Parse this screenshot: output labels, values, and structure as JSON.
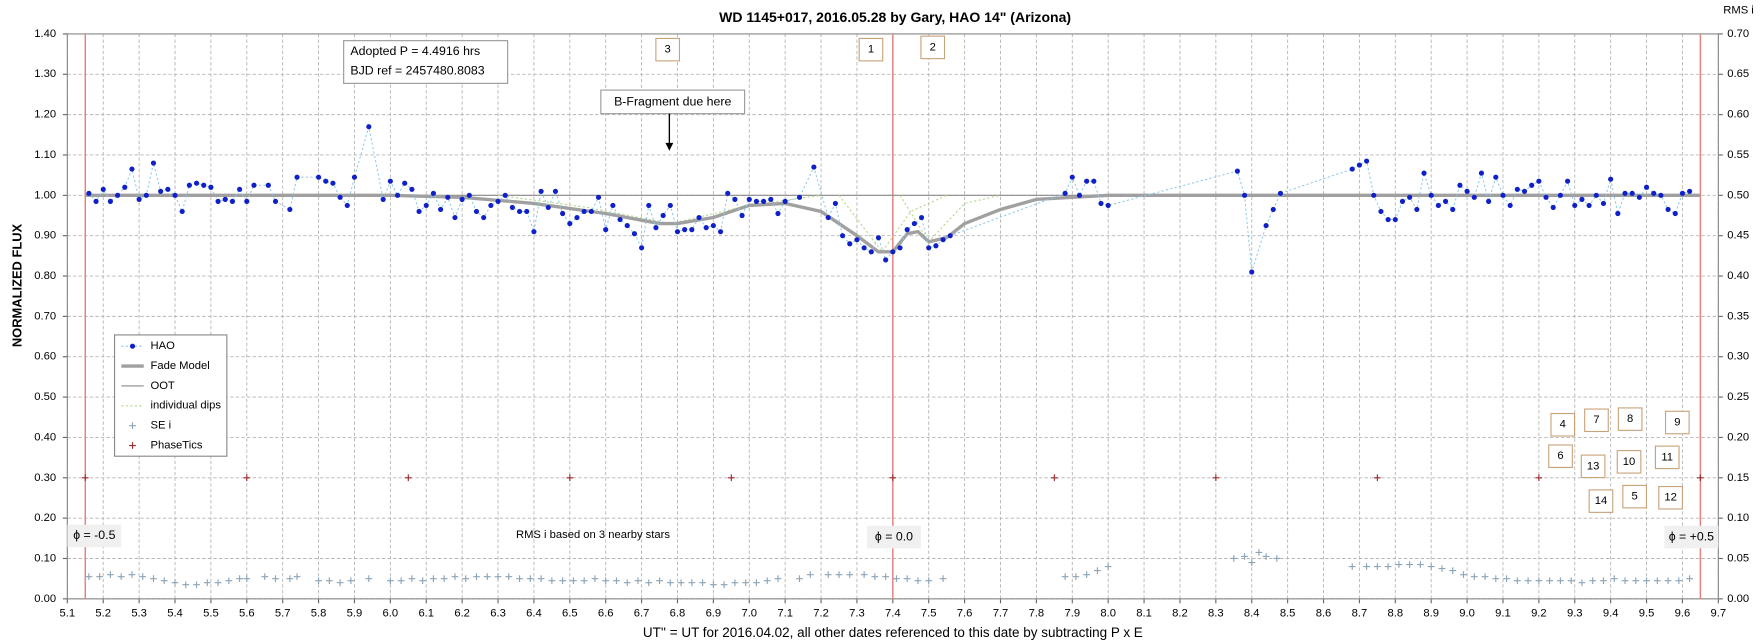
{
  "chart_data": {
    "type": "scatter",
    "title": "WD 1145+017, 2016.05.28  by Gary, HAO 14\" (Arizona)",
    "xlabel": "UT'' = UT for 2016.04.02, all other dates referenced to this date by subtracting P x E",
    "ylabel": "NORMALIZED  FLUX",
    "y2label": "RMS i",
    "xlim": [
      5.0,
      9.7
    ],
    "ylim": [
      0,
      1.4
    ],
    "y2lim": [
      0,
      0.7
    ],
    "xticks": [
      5.1,
      5.2,
      5.3,
      5.4,
      5.5,
      5.6,
      5.7,
      5.8,
      5.9,
      {
        "value": 6.0,
        "label": "6.0"
      },
      6.1,
      6.2,
      6.3,
      6.4,
      6.5,
      6.6,
      6.7,
      6.8,
      6.9,
      {
        "value": 7.0,
        "label": "7.0"
      },
      7.1,
      7.2,
      7.3,
      7.4,
      7.5,
      7.6,
      7.7,
      7.8,
      7.9,
      {
        "value": 8.0,
        "label": "8.0"
      },
      8.1,
      8.2,
      8.3,
      8.4,
      8.5,
      8.6,
      8.7,
      8.8,
      8.9,
      {
        "value": 9.0,
        "label": "9.0"
      },
      9.1,
      9.2,
      9.3,
      9.4,
      9.5,
      9.6,
      9.7
    ],
    "yticks": [
      {
        "value": 0,
        "label": "0.00"
      },
      {
        "value": 0.1,
        "label": "0.10"
      },
      {
        "value": 0.2,
        "label": "0.20"
      },
      {
        "value": 0.3,
        "label": "0.30"
      },
      {
        "value": 0.4,
        "label": "0.40"
      },
      {
        "value": 0.5,
        "label": "0.50"
      },
      {
        "value": 0.6,
        "label": "0.60"
      },
      {
        "value": 0.7,
        "label": "0.70"
      },
      {
        "value": 0.8,
        "label": "0.80"
      },
      {
        "value": 0.9,
        "label": "0.90"
      },
      {
        "value": 1.0,
        "label": "1.00"
      },
      {
        "value": 1.1,
        "label": "1.10"
      },
      {
        "value": 1.2,
        "label": "1.20"
      },
      {
        "value": 1.3,
        "label": "1.30"
      },
      {
        "value": 1.4,
        "label": "1.40"
      }
    ],
    "y2ticks": [
      {
        "value": 0,
        "label": "0.00"
      },
      0.05,
      {
        "value": 0.1,
        "label": "0.10"
      },
      0.15,
      {
        "value": 0.2,
        "label": "0.20"
      },
      0.25,
      {
        "value": 0.3,
        "label": "0.30"
      },
      0.35,
      {
        "value": 0.4,
        "label": "0.40"
      },
      0.45,
      {
        "value": 0.5,
        "label": "0.50"
      },
      0.55,
      {
        "value": 0.6,
        "label": "0.60"
      },
      0.65,
      {
        "value": 0.7,
        "label": "0.70"
      }
    ],
    "grid": true,
    "legend": "lower-left",
    "phase_lines": [
      5.15,
      7.4,
      9.65
    ],
    "phase_line_color": "#e88080",
    "series": [
      {
        "name": "HAO",
        "color": "#1020c8",
        "marker": "dot-line",
        "x": [
          5.16,
          5.18,
          5.2,
          5.22,
          5.24,
          5.26,
          5.28,
          5.3,
          5.32,
          5.34,
          5.36,
          5.38,
          5.4,
          5.42,
          5.44,
          5.46,
          5.48,
          5.5,
          5.52,
          5.54,
          5.56,
          5.58,
          5.6,
          5.62,
          5.66,
          5.68,
          5.72,
          5.74,
          5.8,
          5.82,
          5.84,
          5.86,
          5.88,
          5.9,
          5.94,
          5.98,
          6.0,
          6.02,
          6.04,
          6.06,
          6.08,
          6.1,
          6.12,
          6.14,
          6.16,
          6.18,
          6.2,
          6.22,
          6.24,
          6.26,
          6.28,
          6.3,
          6.32,
          6.34,
          6.36,
          6.38,
          6.4,
          6.42,
          6.44,
          6.46,
          6.48,
          6.5,
          6.52,
          6.54,
          6.56,
          6.58,
          6.6,
          6.62,
          6.64,
          6.66,
          6.68,
          6.7,
          6.72,
          6.74,
          6.76,
          6.78,
          6.8,
          6.82,
          6.84,
          6.86,
          6.88,
          6.9,
          6.92,
          6.94,
          6.96,
          6.98,
          7.0,
          7.02,
          7.04,
          7.06,
          7.08,
          7.1,
          7.14,
          7.18,
          7.22,
          7.24,
          7.26,
          7.28,
          7.3,
          7.32,
          7.34,
          7.36,
          7.38,
          7.4,
          7.42,
          7.44,
          7.46,
          7.48,
          7.5,
          7.52,
          7.54,
          7.56,
          7.88,
          7.9,
          7.92,
          7.94,
          7.96,
          7.98,
          8.0,
          8.36,
          8.38,
          8.4,
          8.44,
          8.46,
          8.48,
          8.68,
          8.7,
          8.72,
          8.74,
          8.76,
          8.78,
          8.8,
          8.82,
          8.84,
          8.86,
          8.88,
          8.9,
          8.92,
          8.94,
          8.96,
          8.98,
          9.0,
          9.02,
          9.04,
          9.06,
          9.08,
          9.1,
          9.12,
          9.14,
          9.16,
          9.18,
          9.2,
          9.22,
          9.24,
          9.26,
          9.28,
          9.3,
          9.32,
          9.34,
          9.36,
          9.38,
          9.4,
          9.42,
          9.44,
          9.46,
          9.48,
          9.5,
          9.52,
          9.54,
          9.56,
          9.58,
          9.6,
          9.62
        ],
        "values": [
          1.005,
          0.985,
          1.015,
          0.985,
          1.0,
          1.02,
          1.065,
          0.99,
          1.0,
          1.08,
          1.01,
          1.015,
          1.0,
          0.96,
          1.025,
          1.03,
          1.025,
          1.02,
          0.985,
          0.99,
          0.985,
          1.015,
          0.985,
          1.025,
          1.025,
          0.985,
          0.965,
          1.045,
          1.045,
          1.035,
          1.03,
          0.995,
          0.975,
          1.045,
          1.17,
          0.99,
          1.035,
          1.0,
          1.03,
          1.015,
          0.96,
          0.975,
          1.005,
          0.965,
          0.995,
          0.945,
          0.99,
          1.0,
          0.96,
          0.945,
          0.975,
          0.985,
          1.0,
          0.97,
          0.96,
          0.96,
          0.91,
          1.01,
          0.97,
          1.01,
          0.955,
          0.93,
          0.945,
          0.96,
          0.96,
          0.995,
          0.915,
          0.975,
          0.94,
          0.925,
          0.905,
          0.87,
          0.975,
          0.92,
          0.95,
          0.975,
          0.91,
          0.915,
          0.915,
          0.945,
          0.92,
          0.925,
          0.91,
          1.005,
          0.99,
          0.95,
          0.99,
          0.985,
          0.985,
          0.99,
          0.955,
          0.985,
          0.995,
          1.07,
          0.945,
          0.98,
          0.9,
          0.88,
          0.89,
          0.87,
          0.86,
          0.895,
          0.84,
          0.86,
          0.87,
          0.915,
          0.93,
          0.945,
          0.87,
          0.875,
          0.89,
          0.9,
          1.005,
          1.045,
          1.0,
          1.035,
          1.035,
          0.98,
          0.975,
          1.06,
          1.0,
          0.81,
          0.925,
          0.965,
          1.005,
          1.065,
          1.075,
          1.085,
          1.0,
          0.96,
          0.94,
          0.94,
          0.985,
          0.995,
          0.965,
          1.055,
          1.0,
          0.975,
          0.985,
          0.965,
          1.025,
          1.01,
          0.995,
          1.055,
          0.985,
          1.045,
          1.0,
          0.975,
          1.015,
          1.01,
          1.025,
          1.035,
          0.995,
          0.97,
          1.0,
          1.035,
          0.975,
          0.99,
          0.975,
          1.0,
          0.98,
          1.04,
          0.955,
          1.005,
          1.005,
          0.995,
          1.02,
          1.005,
          1.0,
          0.965,
          0.955,
          1.005,
          1.01
        ]
      },
      {
        "name": "Fade Model",
        "color": "#a0a0a0",
        "marker": "thick-line",
        "x": [
          5.15,
          6.0,
          6.2,
          6.4,
          6.6,
          6.75,
          6.8,
          6.9,
          7.0,
          7.1,
          7.2,
          7.3,
          7.36,
          7.4,
          7.44,
          7.47,
          7.5,
          7.55,
          7.6,
          7.7,
          7.8,
          8.0,
          9.65
        ],
        "values": [
          1.0,
          1.0,
          0.995,
          0.98,
          0.955,
          0.93,
          0.93,
          0.945,
          0.975,
          0.98,
          0.96,
          0.9,
          0.86,
          0.86,
          0.905,
          0.91,
          0.885,
          0.895,
          0.93,
          0.965,
          0.99,
          1.0,
          1.0
        ]
      },
      {
        "name": "OOT",
        "color": "#8a8a8a",
        "marker": "line",
        "x": [
          5.15,
          9.65
        ],
        "values": [
          1.0,
          1.0
        ]
      },
      {
        "name": "individual dips",
        "color": "#b8d890",
        "marker": "dotted-line",
        "x": [
          6.3,
          6.55,
          6.78,
          7.0,
          7.2,
          7.21,
          7.25,
          7.37,
          7.45,
          7.55,
          7.56,
          7.42,
          7.5,
          7.6,
          7.7
        ],
        "values": [
          1.0,
          0.97,
          0.93,
          0.975,
          1.0,
          null,
          1.0,
          0.86,
          0.96,
          1.0,
          null,
          1.0,
          0.885,
          0.98,
          1.0
        ]
      },
      {
        "name": "SE i",
        "color": "#8aa4b8",
        "marker": "plus",
        "x": [
          5.16,
          5.19,
          5.22,
          5.25,
          5.28,
          5.31,
          5.34,
          5.37,
          5.4,
          5.43,
          5.46,
          5.49,
          5.52,
          5.55,
          5.58,
          5.6,
          5.65,
          5.68,
          5.72,
          5.74,
          5.8,
          5.83,
          5.86,
          5.89,
          5.94,
          6.0,
          6.03,
          6.06,
          6.09,
          6.12,
          6.15,
          6.18,
          6.21,
          6.24,
          6.27,
          6.3,
          6.33,
          6.36,
          6.39,
          6.42,
          6.45,
          6.48,
          6.51,
          6.54,
          6.57,
          6.6,
          6.63,
          6.66,
          6.69,
          6.72,
          6.75,
          6.78,
          6.81,
          6.84,
          6.87,
          6.9,
          6.93,
          6.96,
          6.99,
          7.02,
          7.05,
          7.08,
          7.14,
          7.17,
          7.22,
          7.25,
          7.28,
          7.32,
          7.35,
          7.38,
          7.41,
          7.44,
          7.47,
          7.5,
          7.54,
          7.88,
          7.91,
          7.94,
          7.97,
          8.0,
          8.35,
          8.38,
          8.4,
          8.42,
          8.44,
          8.47,
          8.68,
          8.72,
          8.75,
          8.78,
          8.81,
          8.84,
          8.87,
          8.9,
          8.93,
          8.96,
          8.99,
          9.02,
          9.05,
          9.08,
          9.11,
          9.14,
          9.17,
          9.2,
          9.23,
          9.26,
          9.29,
          9.32,
          9.35,
          9.38,
          9.41,
          9.44,
          9.47,
          9.5,
          9.53,
          9.56,
          9.59,
          9.62
        ],
        "values": [
          0.055,
          0.055,
          0.06,
          0.055,
          0.06,
          0.055,
          0.05,
          0.045,
          0.04,
          0.035,
          0.035,
          0.04,
          0.04,
          0.045,
          0.05,
          0.05,
          0.055,
          0.05,
          0.05,
          0.055,
          0.045,
          0.045,
          0.04,
          0.045,
          0.05,
          0.045,
          0.045,
          0.05,
          0.045,
          0.05,
          0.05,
          0.055,
          0.05,
          0.055,
          0.055,
          0.055,
          0.055,
          0.05,
          0.05,
          0.05,
          0.045,
          0.045,
          0.045,
          0.045,
          0.05,
          0.045,
          0.045,
          0.04,
          0.045,
          0.04,
          0.045,
          0.04,
          0.04,
          0.04,
          0.04,
          0.035,
          0.035,
          0.04,
          0.04,
          0.04,
          0.045,
          0.05,
          0.05,
          0.06,
          0.06,
          0.06,
          0.06,
          0.06,
          0.055,
          0.055,
          0.05,
          0.05,
          0.045,
          0.045,
          0.05,
          0.055,
          0.055,
          0.06,
          0.07,
          0.08,
          0.1,
          0.105,
          0.09,
          0.115,
          0.105,
          0.1,
          0.08,
          0.08,
          0.08,
          0.08,
          0.085,
          0.085,
          0.085,
          0.08,
          0.075,
          0.07,
          0.06,
          0.055,
          0.055,
          0.05,
          0.05,
          0.045,
          0.045,
          0.045,
          0.045,
          0.045,
          0.045,
          0.04,
          0.045,
          0.045,
          0.05,
          0.045,
          0.045,
          0.045,
          0.045,
          0.045,
          0.045,
          0.05
        ]
      },
      {
        "name": "PhaseTics",
        "color": "#a02828",
        "marker": "plus",
        "x": [
          5.15,
          5.6,
          6.05,
          6.5,
          6.95,
          7.4,
          7.85,
          8.3,
          8.75,
          9.2,
          9.65
        ],
        "values": [
          0.3,
          0.3,
          0.3,
          0.3,
          0.3,
          0.3,
          0.3,
          0.3,
          0.3,
          0.3,
          0.3
        ]
      }
    ],
    "annotations": [
      "Adopted P = 4.4916 hrs",
      "BJD ref = 2457480.8083",
      "B-Fragment due here",
      "RMS i based on 3 nearby stars",
      "ϕ = -0.5",
      "ϕ = 0.0",
      "ϕ = +0.5"
    ],
    "dip_labels": [
      "1",
      "2",
      "3",
      "4",
      "5",
      "6",
      "7",
      "8",
      "9",
      "10",
      "11",
      "12",
      "13",
      "14"
    ]
  }
}
